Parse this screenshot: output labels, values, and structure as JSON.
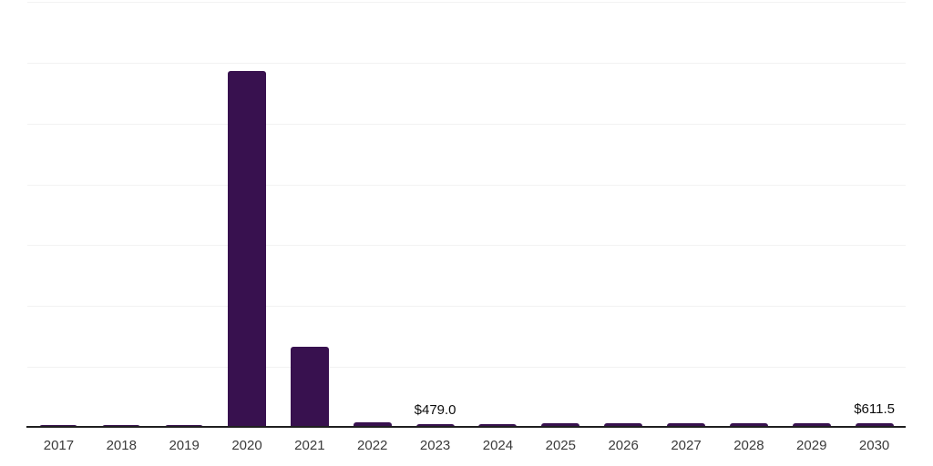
{
  "chart_data": {
    "type": "bar",
    "title": "",
    "xlabel": "",
    "ylabel": "",
    "categories": [
      "2017",
      "2018",
      "2019",
      "2020",
      "2021",
      "2022",
      "2023",
      "2024",
      "2025",
      "2026",
      "2027",
      "2028",
      "2029",
      "2030"
    ],
    "values": [
      350,
      365,
      370,
      43600,
      9850,
      690,
      479.0,
      500,
      520,
      540,
      560,
      580,
      595,
      611.5
    ],
    "value_labels": [
      {
        "category": "2023",
        "text": "$479.0"
      },
      {
        "category": "2030",
        "text": "$611.5"
      }
    ],
    "ylim": [
      0,
      52000
    ],
    "grid": true,
    "gridline_count": 7,
    "legend": false,
    "layout_hints": "horizontal gridlines only, no y-axis tick labels, labels shown only for 2023 and 2030"
  },
  "colors": {
    "bar": "#38114f",
    "axis_line": "#1f1f1f",
    "gridline": "#f2f2f2",
    "tick_label": "#3a3a3a",
    "value_label": "#0d0d0d",
    "background": "#ffffff"
  }
}
